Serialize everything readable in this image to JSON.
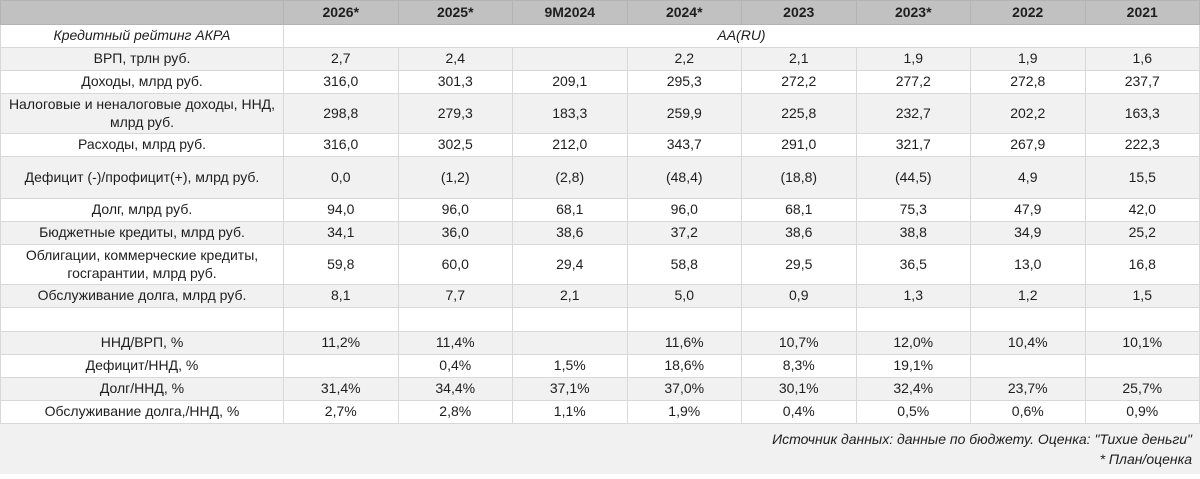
{
  "colors": {
    "header_bg": "#c1c1c1",
    "stripe_bg": "#f1f1f1",
    "border": "#d8d8d8",
    "text": "#1e1e1e",
    "footer_bg": "#f1f1f1"
  },
  "chart_data": {
    "type": "table",
    "title": "",
    "corner_label": "",
    "columns": [
      "2026*",
      "2025*",
      "9М2024",
      "2024*",
      "2023",
      "2023*",
      "2022",
      "2021"
    ],
    "rating_row": {
      "label": "Кредитный рейтинг АКРА",
      "value": "AA(RU)"
    },
    "rows": [
      {
        "label": "ВРП, трлн руб.",
        "values": [
          "2,7",
          "2,4",
          "",
          "2,2",
          "2,1",
          "1,9",
          "1,9",
          "1,6"
        ]
      },
      {
        "label": "Доходы, млрд руб.",
        "values": [
          "316,0",
          "301,3",
          "209,1",
          "295,3",
          "272,2",
          "277,2",
          "272,8",
          "237,7"
        ]
      },
      {
        "label": "Налоговые и неналоговые доходы, ННД, млрд руб.",
        "values": [
          "298,8",
          "279,3",
          "183,3",
          "259,9",
          "225,8",
          "232,7",
          "202,2",
          "163,3"
        ]
      },
      {
        "label": "Расходы, млрд руб.",
        "values": [
          "316,0",
          "302,5",
          "212,0",
          "343,7",
          "291,0",
          "321,7",
          "267,9",
          "222,3"
        ]
      },
      {
        "label": "Дефицит (-)/профицит(+), млрд руб.",
        "values": [
          "0,0",
          "(1,2)",
          "(2,8)",
          "(48,4)",
          "(18,8)",
          "(44,5)",
          "4,9",
          "15,5"
        ]
      },
      {
        "label": "Долг, млрд руб.",
        "values": [
          "94,0",
          "96,0",
          "68,1",
          "96,0",
          "68,1",
          "75,3",
          "47,9",
          "42,0"
        ]
      },
      {
        "label": "Бюджетные кредиты, млрд руб.",
        "values": [
          "34,1",
          "36,0",
          "38,6",
          "37,2",
          "38,6",
          "38,8",
          "34,9",
          "25,2"
        ]
      },
      {
        "label": "Облигации, коммерческие кредиты, госгарантии, млрд руб.",
        "values": [
          "59,8",
          "60,0",
          "29,4",
          "58,8",
          "29,5",
          "36,5",
          "13,0",
          "16,8"
        ]
      },
      {
        "label": "Обслуживание долга, млрд руб.",
        "values": [
          "8,1",
          "7,7",
          "2,1",
          "5,0",
          "0,9",
          "1,3",
          "1,2",
          "1,5"
        ]
      },
      {
        "label": "",
        "values": [
          "",
          "",
          "",
          "",
          "",
          "",
          "",
          ""
        ]
      },
      {
        "label": "ННД/ВРП, %",
        "values": [
          "11,2%",
          "11,4%",
          "",
          "11,6%",
          "10,7%",
          "12,0%",
          "10,4%",
          "10,1%"
        ]
      },
      {
        "label": "Дефицит/ННД, %",
        "values": [
          "",
          "0,4%",
          "1,5%",
          "18,6%",
          "8,3%",
          "19,1%",
          "",
          ""
        ]
      },
      {
        "label": "Долг/ННД, %",
        "values": [
          "31,4%",
          "34,4%",
          "37,1%",
          "37,0%",
          "30,1%",
          "32,4%",
          "23,7%",
          "25,7%"
        ]
      },
      {
        "label": "Обслуживание долга,/ННД, %",
        "values": [
          "2,7%",
          "2,8%",
          "1,1%",
          "1,9%",
          "0,4%",
          "0,5%",
          "0,6%",
          "0,9%"
        ]
      }
    ],
    "source_note": "Источник данных: данные по бюджету. Оценка: \"Тихие деньги\"",
    "footnote": "* План/оценка"
  }
}
